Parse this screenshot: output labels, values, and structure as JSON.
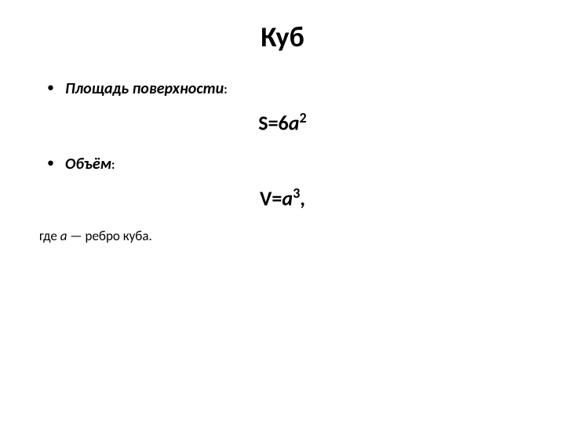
{
  "title": "Куб",
  "bullets": {
    "surface": {
      "label": "Площадь поверхности",
      "colon": ":"
    },
    "volume": {
      "label": "Объём",
      "colon": ":"
    }
  },
  "formulas": {
    "surface": {
      "lhs": "S",
      "eq": "=",
      "coeff": "6",
      "var": "a",
      "exp": "2",
      "suffix": ""
    },
    "volume": {
      "lhs": "V",
      "eq": "=",
      "coeff": "",
      "var": "a",
      "exp": "3",
      "suffix": ","
    }
  },
  "note": {
    "prefix": "где  ",
    "var": "a",
    "suffix": " — ребро куба."
  },
  "colors": {
    "background": "#ffffff",
    "text": "#000000"
  },
  "typography": {
    "title_fontsize": 36,
    "bullet_fontsize": 20,
    "formula_fontsize": 26,
    "note_fontsize": 17,
    "font_family": "Calibri"
  }
}
